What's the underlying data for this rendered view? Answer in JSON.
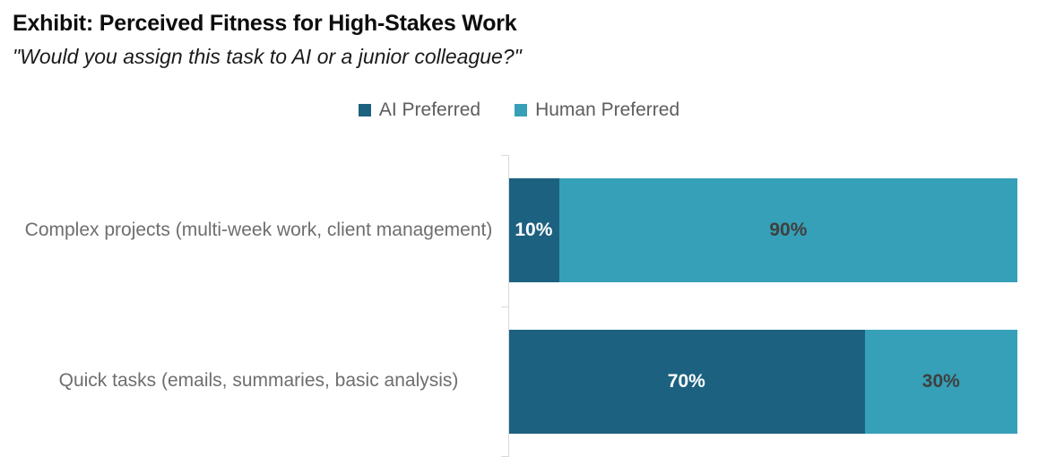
{
  "title": "Exhibit: Perceived Fitness for High-Stakes Work",
  "subtitle": "\"Would you assign this task to AI or a junior colleague?\"",
  "legend": {
    "position": "top-center",
    "items": [
      {
        "label": "AI Preferred",
        "color": "#1d6180"
      },
      {
        "label": "Human Preferred",
        "color": "#35a0b8"
      }
    ]
  },
  "chart_data": {
    "type": "bar",
    "orientation": "horizontal",
    "stacked": true,
    "title": "Exhibit: Perceived Fitness for High-Stakes Work",
    "subtitle": "\"Would you assign this task to AI or a junior colleague?\"",
    "categories": [
      "Complex projects (multi-week work, client management)",
      "Quick tasks (emails, summaries, basic analysis)"
    ],
    "series": [
      {
        "name": "AI Preferred",
        "values": [
          10,
          70
        ],
        "color": "#1d6180",
        "label_color": "#ffffff"
      },
      {
        "name": "Human Preferred",
        "values": [
          90,
          30
        ],
        "color": "#35a0b8",
        "label_color": "#3f3f3f"
      }
    ],
    "data_label_format": "{value}%",
    "data_labels": [
      [
        "10%",
        "90%"
      ],
      [
        "70%",
        "30%"
      ]
    ],
    "xlim": [
      0,
      100
    ],
    "grid": false,
    "legend_position": "top",
    "axis_line_color": "#d9d9d9",
    "category_label_color": "#6e6e6e"
  }
}
